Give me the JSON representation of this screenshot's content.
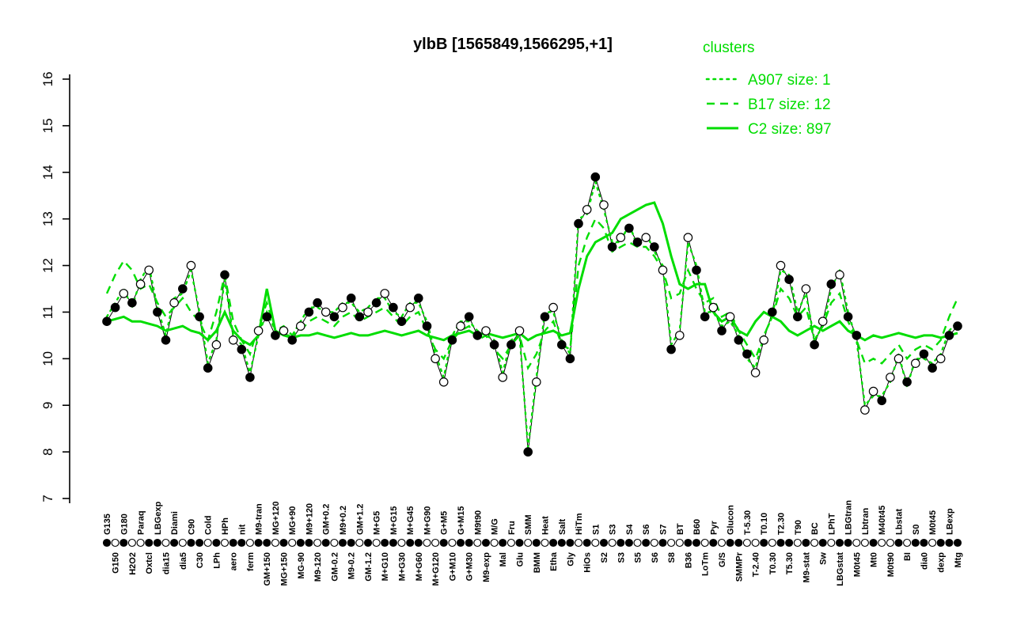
{
  "title": "ylbB [1565849,1566295,+1]",
  "legend": {
    "title": "clusters",
    "items": [
      {
        "label": "A907 size: 1",
        "style": "dotted"
      },
      {
        "label": "B17 size: 12",
        "style": "dashed"
      },
      {
        "label": "C2 size: 897",
        "style": "solid"
      }
    ]
  },
  "colors": {
    "cluster_green": "#00dd00",
    "point_fill": "#000000",
    "point_open": "#ffffff",
    "profile_line": "#000000"
  },
  "chart_data": {
    "type": "line",
    "title": "ylbB [1565849,1566295,+1]",
    "xlabel": "",
    "ylabel": "",
    "ylim": [
      7,
      16
    ],
    "yticks": [
      7,
      8,
      9,
      10,
      11,
      12,
      13,
      14,
      15,
      16
    ],
    "grid": false,
    "legend_position": "top-right",
    "categories": [
      "G135",
      "G150",
      "G180",
      "H2O2",
      "Paraq",
      "Oxtcl",
      "LBGexp",
      "dia15",
      "Diami",
      "dia5",
      "C90",
      "C30",
      "Cold",
      "LPh",
      "HPh",
      "aero",
      "nit",
      "ferm",
      "M9-tran",
      "GM+150",
      "MG+120",
      "MG+150",
      "MG+90",
      "MG-90",
      "M9+120",
      "M9-120",
      "GM+0.2",
      "GM-0.2",
      "M9+0.2",
      "M9-0.2",
      "GM+1.2",
      "GM-1.2",
      "M+G5",
      "M+G10",
      "M+G15",
      "M+G30",
      "M+G45",
      "M+G60",
      "M+G90",
      "M+G120",
      "G+M5",
      "G+M10",
      "G+M15",
      "G+M30",
      "M9t90",
      "M9-exp",
      "M/G",
      "Mal",
      "Fru",
      "Glu",
      "SMM",
      "BMM",
      "Heat",
      "Etha",
      "Salt",
      "Gly",
      "HiTm",
      "HiOs",
      "S1",
      "S2",
      "S3",
      "S3",
      "S4",
      "S5",
      "S6",
      "S6",
      "S7",
      "S8",
      "BT",
      "B36",
      "B60",
      "LoTm",
      "Pyr",
      "G/S",
      "Glucon",
      "SMMPr",
      "T-5.30",
      "T-2.40",
      "T0.10",
      "T0.30",
      "T2.30",
      "T5.30",
      "T90",
      "M9-stat",
      "BC",
      "Sw",
      "LPhT",
      "LBGstat",
      "LBGtran",
      "M0t45",
      "Lbtran",
      "Mt0",
      "M40t45",
      "M0t90",
      "Lbstat",
      "BI",
      "S0",
      "dia0",
      "M0t45",
      "dexp",
      "LBexp",
      "Mtg"
    ],
    "series": [
      {
        "name": "ylbB expression profile",
        "kind": "points",
        "color": "#000000",
        "values": [
          10.8,
          11.1,
          11.4,
          11.2,
          11.6,
          11.9,
          11.0,
          10.4,
          11.2,
          11.5,
          12.0,
          10.9,
          9.8,
          10.3,
          11.8,
          10.4,
          10.2,
          9.6,
          10.6,
          10.9,
          10.5,
          10.6,
          10.4,
          10.7,
          11.0,
          11.2,
          11.0,
          10.9,
          11.1,
          11.3,
          10.9,
          11.0,
          11.2,
          11.4,
          11.1,
          10.8,
          11.1,
          11.3,
          10.7,
          10.0,
          9.5,
          10.4,
          10.7,
          10.9,
          10.5,
          10.6,
          10.3,
          9.6,
          10.3,
          10.6,
          8.0,
          9.5,
          10.9,
          11.1,
          10.3,
          10.0,
          12.9,
          13.2,
          13.9,
          13.3,
          12.4,
          12.6,
          12.8,
          12.5,
          12.6,
          12.4,
          11.9,
          10.2,
          10.5,
          12.6,
          11.9,
          10.9,
          11.1,
          10.6,
          10.9,
          10.4,
          10.1,
          9.7,
          10.4,
          11.0,
          12.0,
          11.7,
          10.9,
          11.5,
          10.3,
          10.8,
          11.6,
          11.8,
          10.9,
          10.5,
          8.9,
          9.3,
          9.1,
          9.6,
          10.0,
          9.5,
          9.9,
          10.1,
          9.8,
          10.0,
          10.5,
          10.7
        ],
        "marker_filled": [
          1,
          1,
          0,
          1,
          0,
          0,
          1,
          1,
          0,
          1,
          0,
          1,
          1,
          0,
          1,
          0,
          1,
          1,
          0,
          1,
          1,
          0,
          1,
          0,
          1,
          1,
          0,
          1,
          0,
          1,
          1,
          0,
          1,
          0,
          1,
          1,
          0,
          1,
          1,
          0,
          0,
          1,
          0,
          1,
          1,
          0,
          1,
          0,
          1,
          0,
          1,
          0,
          1,
          0,
          1,
          1,
          1,
          0,
          1,
          0,
          1,
          0,
          1,
          1,
          0,
          1,
          0,
          1,
          0,
          0,
          1,
          1,
          0,
          1,
          0,
          1,
          1,
          0,
          0,
          1,
          0,
          1,
          1,
          0,
          1,
          0,
          1,
          0,
          1,
          1,
          0,
          0,
          1,
          0,
          0,
          1,
          0,
          1,
          1,
          0,
          1,
          1
        ]
      },
      {
        "name": "A907 size: 1",
        "kind": "cluster",
        "style": "dotted",
        "color": "#00dd00",
        "values": [
          10.9,
          11.2,
          11.5,
          11.1,
          11.7,
          12.0,
          11.1,
          10.5,
          11.3,
          11.4,
          11.9,
          11.0,
          9.9,
          10.4,
          11.7,
          10.5,
          10.3,
          9.7,
          10.5,
          11.0,
          10.6,
          10.5,
          10.5,
          10.8,
          11.1,
          11.1,
          11.0,
          11.0,
          11.2,
          11.2,
          11.0,
          11.1,
          11.3,
          11.3,
          11.0,
          10.9,
          11.2,
          11.2,
          10.8,
          10.1,
          9.6,
          10.5,
          10.8,
          10.8,
          10.6,
          10.5,
          10.4,
          9.7,
          10.4,
          10.5,
          8.1,
          9.6,
          11.0,
          11.0,
          10.4,
          10.1,
          13.0,
          13.1,
          13.8,
          13.2,
          12.5,
          12.5,
          12.9,
          12.4,
          12.7,
          12.3,
          12.0,
          10.3,
          10.6,
          12.5,
          12.0,
          11.0,
          11.0,
          10.7,
          10.8,
          10.5,
          10.0,
          9.8,
          10.5,
          10.9,
          11.9,
          11.8,
          11.0,
          11.4,
          10.4,
          10.7,
          11.5,
          11.9,
          11.0,
          10.4,
          9.0,
          9.2,
          9.2,
          9.5,
          10.1,
          9.4,
          10.0,
          10.0,
          9.9,
          10.1,
          10.6,
          10.8
        ]
      },
      {
        "name": "B17 size: 12",
        "kind": "cluster",
        "style": "dashed",
        "color": "#00dd00",
        "values": [
          11.4,
          11.8,
          12.1,
          11.9,
          11.5,
          11.6,
          11.2,
          10.9,
          11.1,
          11.3,
          11.0,
          10.8,
          10.4,
          11.0,
          11.8,
          10.8,
          10.4,
          10.1,
          10.7,
          11.2,
          10.6,
          10.7,
          10.5,
          10.6,
          10.8,
          10.9,
          10.8,
          10.7,
          10.9,
          11.0,
          10.8,
          10.9,
          11.0,
          11.1,
          10.9,
          10.7,
          10.9,
          11.0,
          10.6,
          10.2,
          10.0,
          10.4,
          10.6,
          10.7,
          10.4,
          10.5,
          10.2,
          10.0,
          10.3,
          10.5,
          9.8,
          10.1,
          10.6,
          10.8,
          10.3,
          10.2,
          12.0,
          12.6,
          13.0,
          12.8,
          12.3,
          12.4,
          12.5,
          12.4,
          12.4,
          12.2,
          11.9,
          11.3,
          11.4,
          11.9,
          11.5,
          11.2,
          11.3,
          10.9,
          11.0,
          10.6,
          10.3,
          10.0,
          10.5,
          10.9,
          11.5,
          11.3,
          10.9,
          11.1,
          10.4,
          10.7,
          11.2,
          11.4,
          10.8,
          10.4,
          9.9,
          10.0,
          9.9,
          10.1,
          10.3,
          10.0,
          10.2,
          10.3,
          10.2,
          10.4,
          10.9,
          11.3
        ]
      },
      {
        "name": "C2 size: 897",
        "kind": "cluster",
        "style": "solid",
        "color": "#00dd00",
        "values": [
          10.8,
          10.85,
          10.9,
          10.8,
          10.8,
          10.75,
          10.7,
          10.6,
          10.65,
          10.7,
          10.6,
          10.55,
          10.4,
          10.6,
          11.0,
          10.6,
          10.4,
          10.3,
          10.5,
          11.5,
          10.6,
          10.5,
          10.45,
          10.5,
          10.5,
          10.55,
          10.5,
          10.45,
          10.5,
          10.55,
          10.5,
          10.5,
          10.55,
          10.6,
          10.55,
          10.5,
          10.55,
          10.6,
          10.5,
          10.45,
          10.4,
          10.5,
          10.55,
          10.6,
          10.5,
          10.55,
          10.5,
          10.45,
          10.5,
          10.55,
          10.4,
          10.5,
          10.55,
          10.6,
          10.5,
          10.55,
          11.5,
          12.2,
          12.5,
          12.6,
          12.7,
          13.0,
          13.1,
          13.2,
          13.3,
          13.35,
          12.9,
          12.2,
          11.6,
          11.5,
          11.6,
          11.6,
          11.0,
          10.8,
          10.9,
          10.6,
          10.5,
          10.8,
          11.0,
          10.9,
          10.8,
          10.6,
          10.5,
          10.6,
          10.7,
          10.6,
          10.7,
          10.8,
          10.6,
          10.5,
          10.4,
          10.5,
          10.45,
          10.5,
          10.55,
          10.5,
          10.45,
          10.5,
          10.5,
          10.45,
          10.5,
          10.55
        ]
      }
    ]
  }
}
